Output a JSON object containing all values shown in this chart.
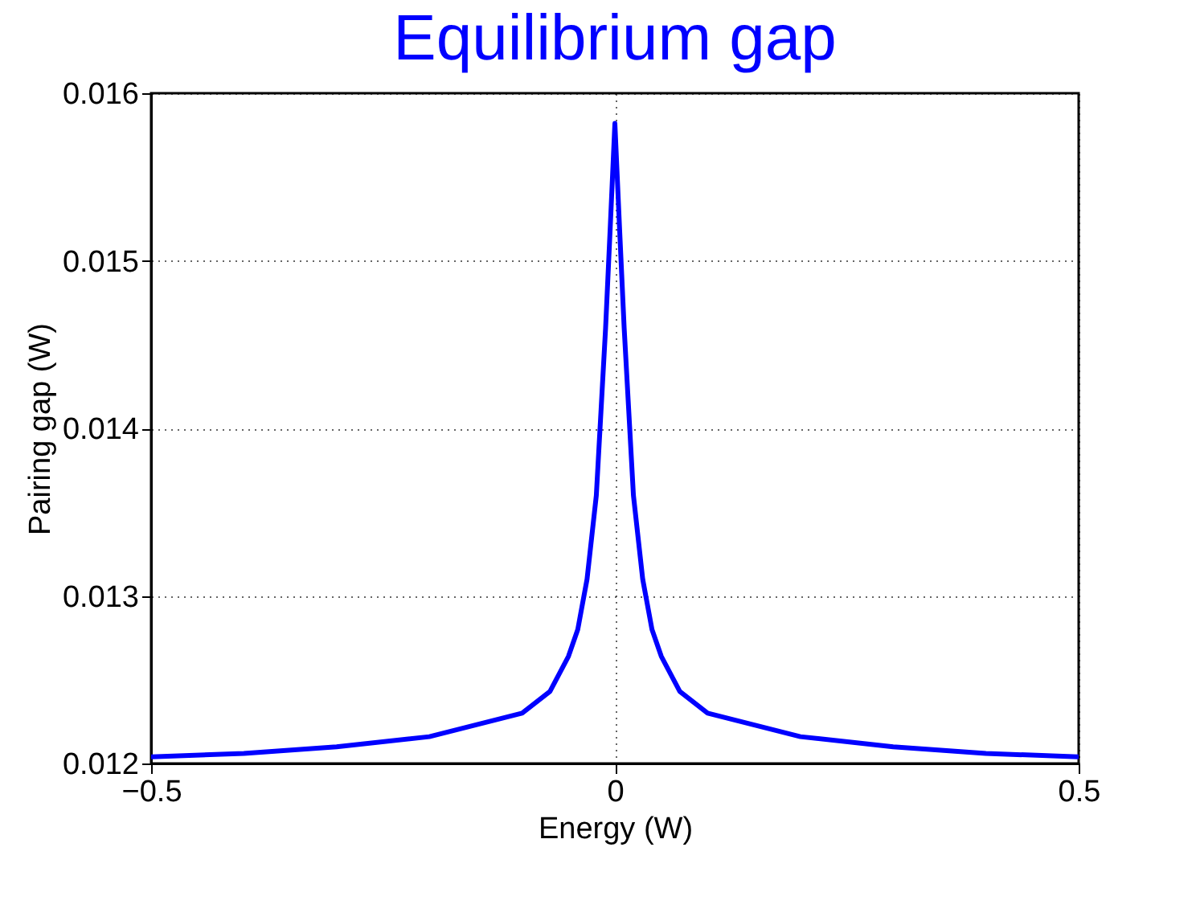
{
  "chart_data": {
    "type": "line",
    "title": "Equilibrium gap",
    "xlabel": "Energy (W)",
    "ylabel": "Pairing gap (W)",
    "x": [
      -0.5,
      -0.4,
      -0.3,
      -0.2,
      -0.1,
      -0.07,
      -0.05,
      -0.04,
      -0.03,
      -0.02,
      -0.015,
      -0.01,
      -0.005,
      0,
      0.005,
      0.01,
      0.015,
      0.02,
      0.03,
      0.04,
      0.05,
      0.07,
      0.1,
      0.2,
      0.3,
      0.4,
      0.5
    ],
    "series": [
      {
        "color": "#0000ff",
        "values": [
          0.01204,
          0.01206,
          0.0121,
          0.01216,
          0.0123,
          0.01243,
          0.01264,
          0.0128,
          0.0131,
          0.0136,
          0.0141,
          0.0146,
          0.0152,
          0.01582,
          0.0152,
          0.0146,
          0.0141,
          0.0136,
          0.0131,
          0.0128,
          0.01264,
          0.01243,
          0.0123,
          0.01216,
          0.0121,
          0.01206,
          0.01204
        ]
      }
    ],
    "xlim": [
      -0.5,
      0.5
    ],
    "xticks": [
      -0.5,
      0,
      0.5
    ],
    "ylim": [
      0.012,
      0.016
    ],
    "yticks": [
      0.012,
      0.013,
      0.014,
      0.015,
      0.016
    ],
    "grid": true,
    "line_style": "solid",
    "marker": "none"
  }
}
